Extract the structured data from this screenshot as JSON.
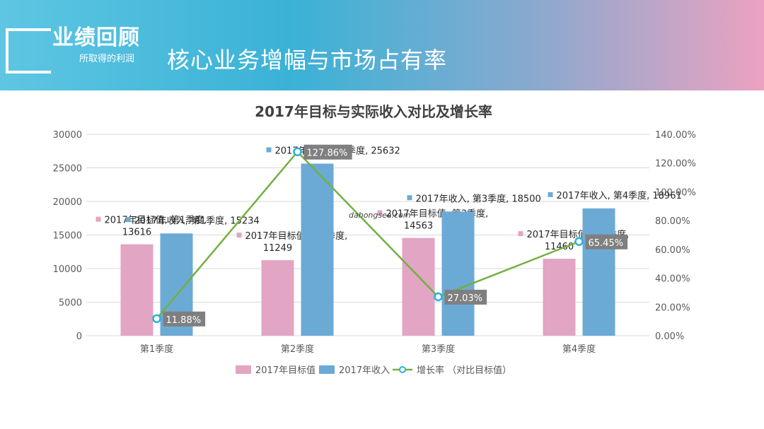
{
  "header": {
    "section_title": "业绩回顾",
    "section_subtitle": "所取得的利润",
    "slide_title": "核心业务增幅与市场占有率"
  },
  "watermark": "dahongsea.com",
  "colors": {
    "target": "#e2a5c4",
    "actual": "#6caad6",
    "growth_line": "#73b041",
    "growth_marker": "#2ab0dc",
    "label_box": "#7f7f7f"
  },
  "chart_data": {
    "type": "bar",
    "title": "2017年目标与实际收入对比及增长率",
    "categories": [
      "第1季度",
      "第2季度",
      "第3季度",
      "第4季度"
    ],
    "series": [
      {
        "name": "2017年目标值",
        "type": "bar",
        "axis": "left",
        "values": [
          13616,
          11249,
          14563,
          11460
        ],
        "data_labels": [
          "2017年目标值, 第1季度, 13616",
          "2017年目标值, 第2季度, 11249",
          "2017年目标值, 第3季度, 14563",
          "2017年目标值, 第4季度, 11460"
        ]
      },
      {
        "name": "2017年收入",
        "type": "bar",
        "axis": "left",
        "values": [
          15234,
          25632,
          18500,
          18961
        ],
        "data_labels": [
          "2017年收入, 第1季度, 15234",
          "2017年收入, 第2季度, 25632",
          "2017年收入, 第3季度, 18500",
          "2017年收入, 第4季度, 18961"
        ]
      },
      {
        "name": "增长率 （对比目标值）",
        "type": "line",
        "axis": "right",
        "values": [
          11.88,
          127.86,
          27.03,
          65.45
        ],
        "data_labels": [
          "11.88%",
          "127.86%",
          "27.03%",
          "65.45%"
        ]
      }
    ],
    "y_left": {
      "range": [
        0,
        30000
      ],
      "ticks": [
        "0",
        "5000",
        "10000",
        "15000",
        "20000",
        "25000",
        "30000"
      ]
    },
    "y_right": {
      "range": [
        0,
        140
      ],
      "unit": "%",
      "ticks": [
        "0.00%",
        "20.00%",
        "40.00%",
        "60.00%",
        "80.00%",
        "100.00%",
        "120.00%",
        "140.00%"
      ]
    },
    "grid": true,
    "legend_position": "bottom"
  }
}
